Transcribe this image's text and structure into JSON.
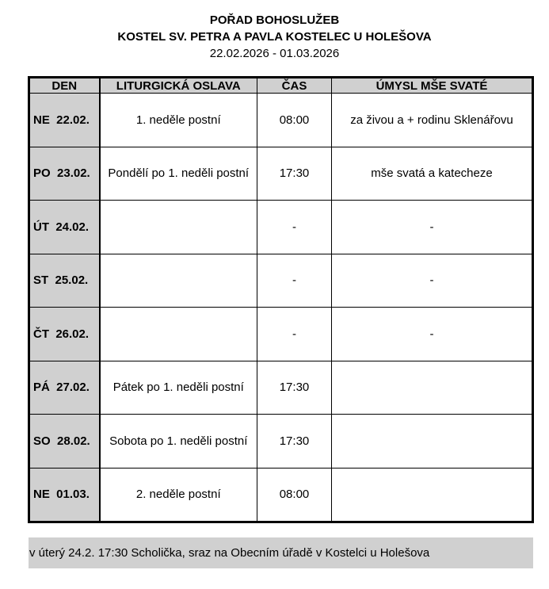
{
  "header": {
    "title": "POŘAD BOHOSLUŽEB",
    "subtitle": "KOSTEL SV. PETRA A PAVLA KOSTELEC U HOLEŠOVA",
    "dates": "22.02.2026 - 01.03.2026"
  },
  "table": {
    "columns": [
      "DEN",
      "LITURGICKÁ OSLAVA",
      "ČAS",
      "ÚMYSL MŠE SVATÉ"
    ],
    "rows": [
      {
        "den": "NE  22.02.",
        "oslava": "1. neděle postní",
        "cas": "08:00",
        "umysl": "za živou a + rodinu Sklenářovu"
      },
      {
        "den": "PO  23.02.",
        "oslava": "Pondělí po 1. neděli postní",
        "cas": "17:30",
        "umysl": "mše svatá a katecheze"
      },
      {
        "den": "ÚT  24.02.",
        "oslava": "",
        "cas": "-",
        "umysl": "-"
      },
      {
        "den": "ST  25.02.",
        "oslava": "",
        "cas": "-",
        "umysl": "-"
      },
      {
        "den": "ČT  26.02.",
        "oslava": "",
        "cas": "-",
        "umysl": "-"
      },
      {
        "den": "PÁ  27.02.",
        "oslava": "Pátek po 1. neděli postní",
        "cas": "17:30",
        "umysl": ""
      },
      {
        "den": "SO  28.02.",
        "oslava": "Sobota po 1. neděli postní",
        "cas": "17:30",
        "umysl": ""
      },
      {
        "den": "NE  01.03.",
        "oslava": "2. neděle postní",
        "cas": "08:00",
        "umysl": ""
      }
    ]
  },
  "note": "v úterý 24.2. 17:30 Scholička, sraz na Obecním úřadě v Kostelci u Holešova"
}
